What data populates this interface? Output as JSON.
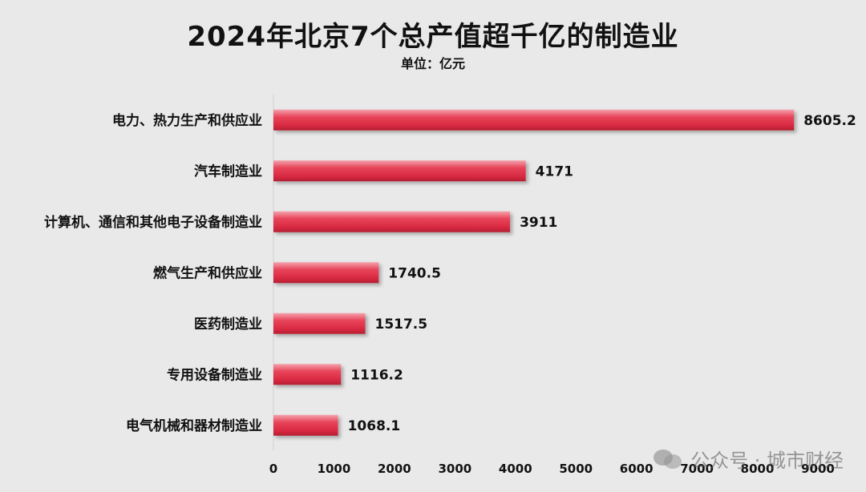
{
  "chart_data": {
    "type": "bar",
    "orientation": "horizontal",
    "title": "2024年北京7个总产值超千亿的制造业",
    "subtitle": "单位：亿元",
    "categories": [
      "电力、热力生产和供应业",
      "汽车制造业",
      "计算机、通信和其他电子设备制造业",
      "燃气生产和供应业",
      "医药制造业",
      "专用设备制造业",
      "电气机械和器材制造业"
    ],
    "values": [
      8605.2,
      4171,
      3911,
      1740.5,
      1517.5,
      1116.2,
      1068.1
    ],
    "value_labels": [
      "8605.2",
      "4171",
      "3911",
      "1740.5",
      "1517.5",
      "1116.2",
      "1068.1"
    ],
    "xlim": [
      0,
      9000
    ],
    "xticks": [
      0,
      1000,
      2000,
      3000,
      4000,
      5000,
      6000,
      7000,
      8000,
      9000
    ],
    "grid": false,
    "bar_color": "#e8455a"
  },
  "watermark": "公众号 · 城市财经"
}
